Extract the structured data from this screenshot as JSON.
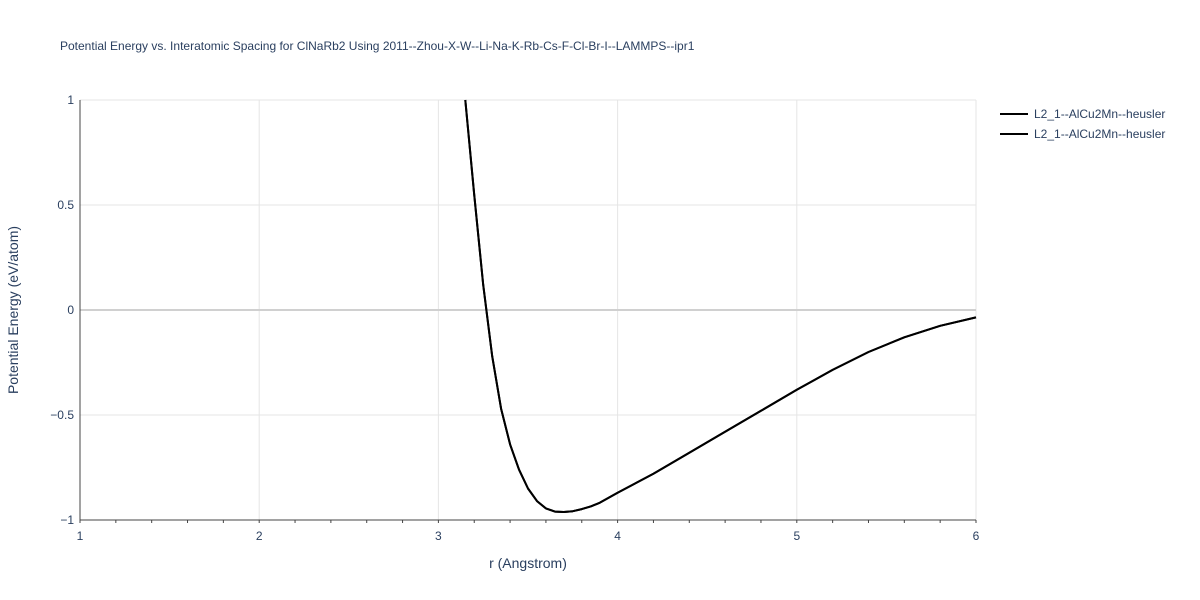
{
  "chart_data": {
    "type": "line",
    "title": "Potential Energy vs. Interatomic Spacing for ClNaRb2 Using 2011--Zhou-X-W--Li-Na-K-Rb-Cs-F-Cl-Br-I--LAMMPS--ipr1",
    "xlabel": "r (Angstrom)",
    "ylabel": "Potential Energy (eV/atom)",
    "xlim": [
      1,
      6
    ],
    "ylim": [
      -1,
      1
    ],
    "x_ticks": [
      "1",
      "2",
      "3",
      "4",
      "5",
      "6"
    ],
    "y_ticks": [
      "−1",
      "−0.5",
      "0",
      "0.5",
      "1"
    ],
    "x_tick_values": [
      1,
      2,
      3,
      4,
      5,
      6
    ],
    "y_tick_values": [
      -1,
      -0.5,
      0,
      0.5,
      1
    ],
    "grid": true,
    "legend_position": "top-right",
    "colors": {
      "line": "#000000",
      "grid": "#e5e5e5",
      "zero_line": "#d0d0d0",
      "text": "#2a3f5f"
    },
    "series": [
      {
        "name": "L2_1--AlCu2Mn--heusler",
        "x": [
          3.15,
          3.2,
          3.25,
          3.3,
          3.35,
          3.4,
          3.45,
          3.5,
          3.55,
          3.6,
          3.65,
          3.7,
          3.75,
          3.8,
          3.85,
          3.9,
          4.0,
          4.2,
          4.4,
          4.6,
          4.8,
          5.0,
          5.2,
          5.4,
          5.6,
          5.8,
          6.0
        ],
        "y": [
          1.0,
          0.55,
          0.12,
          -0.22,
          -0.47,
          -0.64,
          -0.76,
          -0.85,
          -0.91,
          -0.945,
          -0.96,
          -0.962,
          -0.958,
          -0.948,
          -0.935,
          -0.918,
          -0.87,
          -0.78,
          -0.68,
          -0.58,
          -0.48,
          -0.38,
          -0.285,
          -0.2,
          -0.13,
          -0.075,
          -0.035
        ]
      },
      {
        "name": "L2_1--AlCu2Mn--heusler",
        "x": [
          3.15,
          3.2,
          3.25,
          3.3,
          3.35,
          3.4,
          3.45,
          3.5,
          3.55,
          3.6,
          3.65,
          3.7,
          3.75,
          3.8,
          3.85,
          3.9,
          4.0,
          4.2,
          4.4,
          4.6,
          4.8,
          5.0,
          5.2,
          5.4,
          5.6,
          5.8,
          6.0
        ],
        "y": [
          1.0,
          0.55,
          0.12,
          -0.22,
          -0.47,
          -0.64,
          -0.76,
          -0.85,
          -0.91,
          -0.945,
          -0.96,
          -0.962,
          -0.958,
          -0.948,
          -0.935,
          -0.918,
          -0.87,
          -0.78,
          -0.68,
          -0.58,
          -0.48,
          -0.38,
          -0.285,
          -0.2,
          -0.13,
          -0.075,
          -0.035
        ]
      }
    ]
  }
}
